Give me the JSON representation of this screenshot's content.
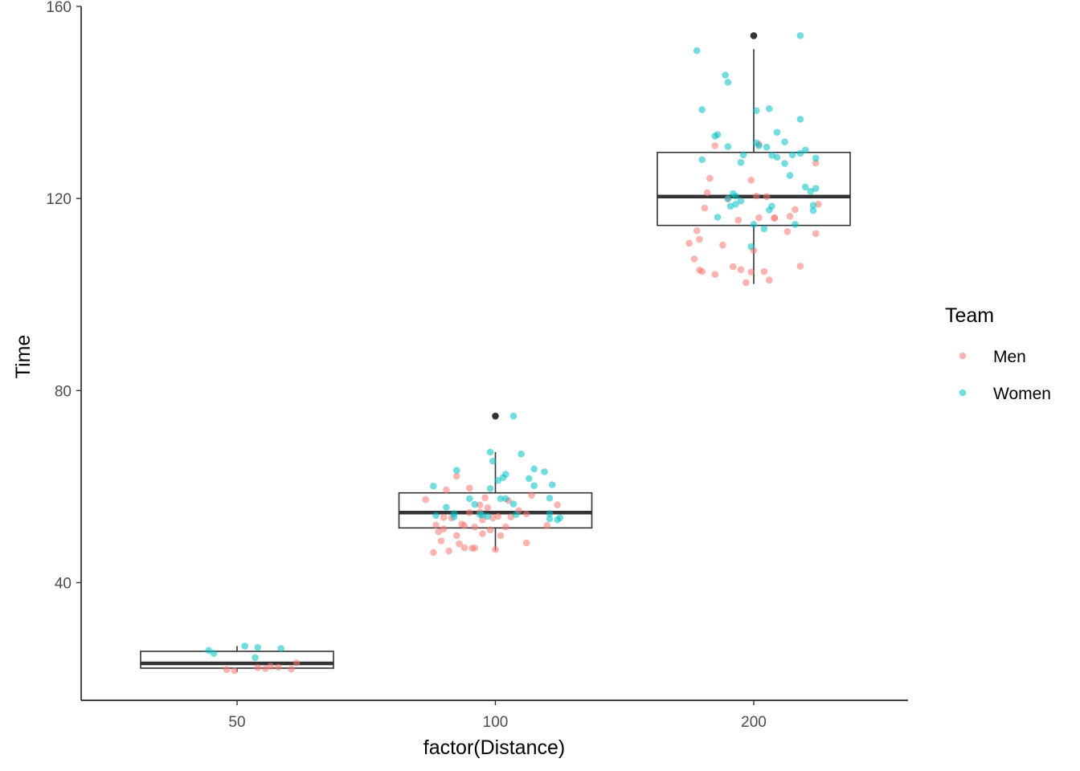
{
  "chart_data": {
    "type": "boxplot",
    "xlabel": "factor(Distance)",
    "ylabel": "Time",
    "categories": [
      "50",
      "100",
      "200"
    ],
    "ylim": [
      15.5,
      160
    ],
    "y_ticks": [
      40,
      80,
      120,
      160
    ],
    "grid": false,
    "legend": {
      "title": "Team",
      "position": "right",
      "entries": [
        {
          "name": "Men",
          "color": "#F8766D"
        },
        {
          "name": "Women",
          "color": "#00BFC4"
        }
      ]
    },
    "boxes": [
      {
        "category": "50",
        "q1": 22.2,
        "median": 23.2,
        "q3": 25.7,
        "whisker_low": 21.4,
        "whisker_high": 26.8,
        "outliers": []
      },
      {
        "category": "100",
        "q1": 51.4,
        "median": 54.6,
        "q3": 58.7,
        "whisker_low": 46.7,
        "whisker_high": 67.2,
        "outliers": [
          74.7
        ]
      },
      {
        "category": "200",
        "q1": 114.4,
        "median": 120.4,
        "q3": 129.6,
        "whisker_low": 102.2,
        "whisker_high": 151.1,
        "outliers": [
          153.9
        ]
      }
    ],
    "series": [
      {
        "name": "Men",
        "points": [
          [
            "50",
            -0.04,
            21.9
          ],
          [
            "50",
            -0.01,
            21.7
          ],
          [
            "50",
            0.08,
            22.3
          ],
          [
            "50",
            0.11,
            22.1
          ],
          [
            "50",
            0.13,
            22.6
          ],
          [
            "50",
            0.16,
            22.4
          ],
          [
            "50",
            0.21,
            22.0
          ],
          [
            "50",
            0.23,
            23.3
          ],
          [
            "100",
            -0.27,
            57.3
          ],
          [
            "100",
            -0.24,
            46.3
          ],
          [
            "100",
            -0.23,
            52.0
          ],
          [
            "100",
            -0.22,
            50.6
          ],
          [
            "100",
            -0.21,
            48.7
          ],
          [
            "100",
            -0.2,
            53.6
          ],
          [
            "100",
            -0.2,
            51.2
          ],
          [
            "100",
            -0.19,
            59.3
          ],
          [
            "100",
            -0.18,
            46.6
          ],
          [
            "100",
            -0.17,
            53.5
          ],
          [
            "100",
            -0.15,
            49.8
          ],
          [
            "100",
            -0.15,
            62.2
          ],
          [
            "100",
            -0.14,
            48.1
          ],
          [
            "100",
            -0.13,
            52.2
          ],
          [
            "100",
            -0.12,
            47.3
          ],
          [
            "100",
            -0.12,
            51.9
          ],
          [
            "100",
            -0.1,
            59.7
          ],
          [
            "100",
            -0.1,
            54.6
          ],
          [
            "100",
            -0.09,
            47.2
          ],
          [
            "100",
            -0.08,
            51.6
          ],
          [
            "100",
            -0.08,
            47.2
          ],
          [
            "100",
            -0.06,
            56.2
          ],
          [
            "100",
            -0.05,
            50.2
          ],
          [
            "100",
            -0.06,
            54.7
          ],
          [
            "100",
            -0.05,
            53.1
          ],
          [
            "100",
            -0.04,
            57.7
          ],
          [
            "100",
            -0.03,
            55.6
          ],
          [
            "100",
            -0.02,
            51.0
          ],
          [
            "100",
            -0.01,
            53.5
          ],
          [
            "100",
            0.0,
            46.9
          ],
          [
            "100",
            0.01,
            53.8
          ],
          [
            "100",
            0.02,
            49.8
          ],
          [
            "100",
            0.04,
            51.6
          ],
          [
            "100",
            0.05,
            57.1
          ],
          [
            "100",
            0.06,
            53.7
          ],
          [
            "100",
            0.09,
            55.0
          ],
          [
            "100",
            0.12,
            48.3
          ],
          [
            "100",
            0.12,
            54.3
          ],
          [
            "100",
            0.14,
            58.2
          ],
          [
            "100",
            0.2,
            51.9
          ],
          [
            "100",
            0.24,
            56.2
          ],
          [
            "200",
            -0.25,
            110.7
          ],
          [
            "200",
            -0.23,
            107.4
          ],
          [
            "200",
            -0.22,
            113.3
          ],
          [
            "200",
            -0.21,
            105.1
          ],
          [
            "200",
            -0.21,
            111.5
          ],
          [
            "200",
            -0.2,
            104.8
          ],
          [
            "200",
            -0.19,
            118.0
          ],
          [
            "200",
            -0.18,
            121.2
          ],
          [
            "200",
            -0.17,
            124.2
          ],
          [
            "200",
            -0.15,
            104.2
          ],
          [
            "200",
            -0.15,
            131.0
          ],
          [
            "200",
            -0.12,
            110.3
          ],
          [
            "200",
            -0.1,
            119.9
          ],
          [
            "200",
            -0.08,
            105.8
          ],
          [
            "200",
            -0.06,
            115.5
          ],
          [
            "200",
            -0.05,
            105.2
          ],
          [
            "200",
            -0.03,
            102.5
          ],
          [
            "200",
            -0.01,
            123.8
          ],
          [
            "200",
            -0.01,
            104.7
          ],
          [
            "200",
            0.0,
            109.2
          ],
          [
            "200",
            0.01,
            120.5
          ],
          [
            "200",
            0.02,
            116.0
          ],
          [
            "200",
            0.02,
            131.3
          ],
          [
            "200",
            0.04,
            104.8
          ],
          [
            "200",
            0.05,
            120.4
          ],
          [
            "200",
            0.06,
            103.0
          ],
          [
            "200",
            0.08,
            116.0
          ],
          [
            "200",
            0.08,
            115.9
          ],
          [
            "200",
            0.13,
            113.1
          ],
          [
            "200",
            0.14,
            116.3
          ],
          [
            "200",
            0.16,
            117.7
          ],
          [
            "200",
            0.18,
            105.9
          ],
          [
            "200",
            0.24,
            127.4
          ],
          [
            "200",
            0.24,
            112.7
          ],
          [
            "200",
            0.25,
            118.8
          ]
        ]
      },
      {
        "name": "Women",
        "points": [
          [
            "50",
            -0.11,
            25.9
          ],
          [
            "50",
            -0.09,
            25.3
          ],
          [
            "50",
            0.03,
            26.8
          ],
          [
            "50",
            0.07,
            24.4
          ],
          [
            "50",
            0.08,
            26.5
          ],
          [
            "50",
            0.17,
            26.3
          ],
          [
            "100",
            -0.24,
            60.1
          ],
          [
            "100",
            -0.23,
            54.0
          ],
          [
            "100",
            -0.19,
            55.7
          ],
          [
            "100",
            -0.16,
            54.4
          ],
          [
            "100",
            -0.16,
            53.7
          ],
          [
            "100",
            -0.15,
            63.4
          ],
          [
            "100",
            -0.1,
            57.5
          ],
          [
            "100",
            -0.08,
            56.3
          ],
          [
            "100",
            -0.06,
            54.2
          ],
          [
            "100",
            -0.05,
            54.1
          ],
          [
            "100",
            -0.03,
            53.8
          ],
          [
            "100",
            -0.02,
            59.6
          ],
          [
            "100",
            -0.02,
            67.2
          ],
          [
            "100",
            -0.01,
            65.3
          ],
          [
            "100",
            0.01,
            61.3
          ],
          [
            "100",
            0.02,
            57.5
          ],
          [
            "100",
            0.03,
            61.9
          ],
          [
            "100",
            0.04,
            62.6
          ],
          [
            "100",
            0.04,
            57.5
          ],
          [
            "100",
            0.07,
            74.7
          ],
          [
            "100",
            0.07,
            56.4
          ],
          [
            "100",
            0.08,
            54.2
          ],
          [
            "100",
            0.1,
            66.8
          ],
          [
            "100",
            0.13,
            61.7
          ],
          [
            "100",
            0.15,
            63.7
          ],
          [
            "100",
            0.15,
            60.2
          ],
          [
            "100",
            0.19,
            63.1
          ],
          [
            "100",
            0.21,
            57.6
          ],
          [
            "100",
            0.21,
            53.3
          ],
          [
            "100",
            0.21,
            54.4
          ],
          [
            "100",
            0.22,
            60.4
          ],
          [
            "100",
            0.24,
            53.1
          ],
          [
            "100",
            0.25,
            53.5
          ],
          [
            "200",
            -0.22,
            150.8
          ],
          [
            "200",
            -0.2,
            138.5
          ],
          [
            "200",
            -0.2,
            128.1
          ],
          [
            "200",
            -0.15,
            133.0
          ],
          [
            "200",
            -0.14,
            133.3
          ],
          [
            "200",
            -0.14,
            116.1
          ],
          [
            "200",
            -0.11,
            145.7
          ],
          [
            "200",
            -0.1,
            144.2
          ],
          [
            "200",
            -0.1,
            120.0
          ],
          [
            "200",
            -0.1,
            130.8
          ],
          [
            "200",
            -0.09,
            118.4
          ],
          [
            "200",
            -0.08,
            121.0
          ],
          [
            "200",
            -0.07,
            118.8
          ],
          [
            "200",
            -0.07,
            120.5
          ],
          [
            "200",
            -0.05,
            127.5
          ],
          [
            "200",
            -0.05,
            119.5
          ],
          [
            "200",
            -0.04,
            129.1
          ],
          [
            "200",
            -0.01,
            110.0
          ],
          [
            "200",
            0.0,
            114.6
          ],
          [
            "200",
            0.01,
            138.3
          ],
          [
            "200",
            0.01,
            131.6
          ],
          [
            "200",
            0.02,
            131.0
          ],
          [
            "200",
            0.04,
            113.7
          ],
          [
            "200",
            0.05,
            130.7
          ],
          [
            "200",
            0.06,
            138.7
          ],
          [
            "200",
            0.06,
            117.6
          ],
          [
            "200",
            0.07,
            129.0
          ],
          [
            "200",
            0.07,
            118.4
          ],
          [
            "200",
            0.09,
            128.6
          ],
          [
            "200",
            0.09,
            133.8
          ],
          [
            "200",
            0.12,
            127.3
          ],
          [
            "200",
            0.12,
            131.8
          ],
          [
            "200",
            0.14,
            124.8
          ],
          [
            "200",
            0.15,
            129.1
          ],
          [
            "200",
            0.16,
            114.6
          ],
          [
            "200",
            0.18,
            153.9
          ],
          [
            "200",
            0.18,
            136.5
          ],
          [
            "200",
            0.18,
            129.4
          ],
          [
            "200",
            0.2,
            122.4
          ],
          [
            "200",
            0.2,
            130.1
          ],
          [
            "200",
            0.22,
            121.5
          ],
          [
            "200",
            0.23,
            118.6
          ],
          [
            "200",
            0.24,
            128.4
          ],
          [
            "200",
            0.24,
            122.1
          ],
          [
            "200",
            0.23,
            117.5
          ]
        ]
      }
    ]
  }
}
